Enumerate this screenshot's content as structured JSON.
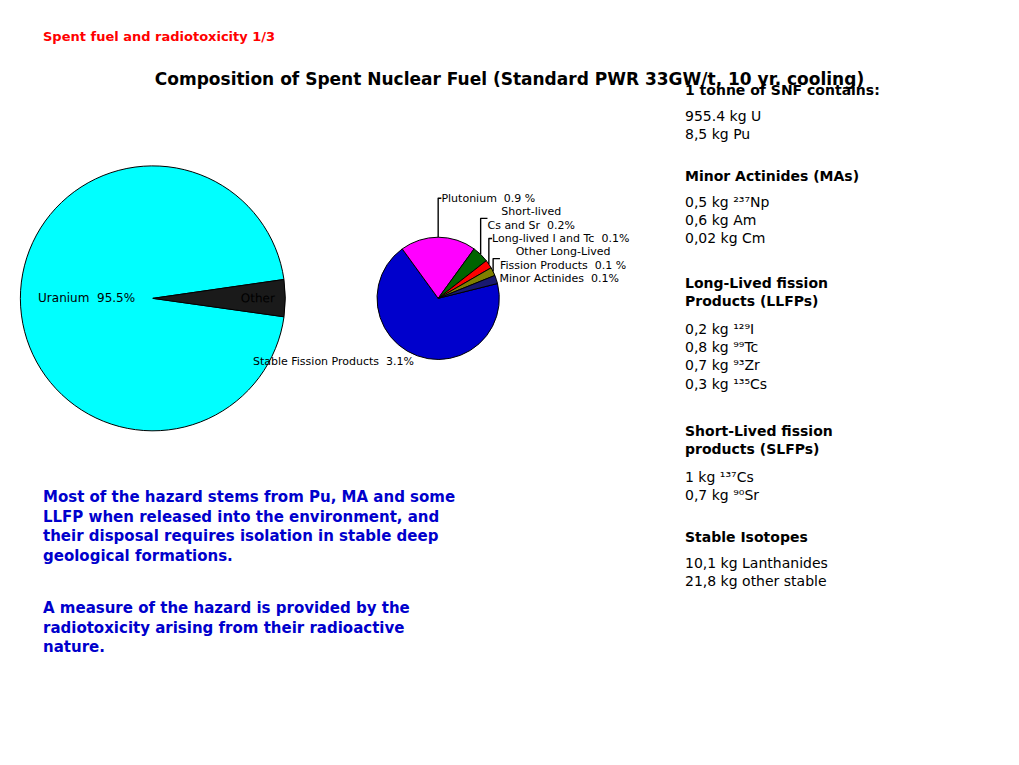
{
  "chart_data": [
    {
      "type": "pie",
      "title": "Composition of Spent Nuclear Fuel (Standard PWR 33GW/t, 10 yr. cooling)",
      "categories": [
        "Uranium  95.5%",
        "Other"
      ],
      "values": [
        95.5,
        4.5
      ],
      "colors": [
        "#00ffff",
        "#1a1a1a"
      ],
      "annotations": [
        {
          "text": "Spent fuel and radiotoxicity 1/3",
          "color": "red"
        },
        {
          "text": "Most of the hazard stems from Pu, MA and some\nLLFP when released into the environment, and\ntheir disposal requires isolation in stable deep\ngeological formations.",
          "color": "#0000cc"
        },
        {
          "text": "A measure of the hazard is provided by the\nradiotoxicity arising from their radioactive\nnature.",
          "color": "#0000cc"
        },
        {
          "heading": "1 tonne of SNF contains:",
          "text": "955.4 kg U\n8,5 kg Pu"
        },
        {
          "heading": "Minor Actinides (MAs)",
          "text": "0,5 kg ²³⁷Np\n0,6 kg Am\n0,02 kg Cm"
        },
        {
          "heading": "Long-Lived fission\nProducts (LLFPs)",
          "text": "0,2 kg ¹²⁹I\n0,8 kg ⁹⁹Tc\n0,7 kg ⁹³Zr\n0,3 kg ¹³⁵Cs"
        },
        {
          "heading": "Short-Lived fission\nproducts (SLFPs)",
          "text": "1 kg ¹³⁷Cs\n0,7 kg ⁹⁰Sr"
        },
        {
          "heading": "Stable Isotopes",
          "text": "10,1 kg Lanthanides\n21,8 kg other stable"
        }
      ]
    },
    {
      "type": "pie",
      "categories": [
        "Stable Fission Products  3.1%",
        "Plutonium  0.9 %",
        "Short-lived\nCs and Sr  0.2%",
        "Long-lived I and Tc  0.1%",
        "Other Long-Lived\nFission Products  0.1 %",
        "Minor Actinides  0.1%"
      ],
      "values": [
        3.1,
        0.9,
        0.2,
        0.1,
        0.1,
        0.1
      ],
      "colors": [
        "#0000cc",
        "#ff00ff",
        "#006400",
        "#ff0000",
        "#808000",
        "#191970"
      ]
    }
  ]
}
